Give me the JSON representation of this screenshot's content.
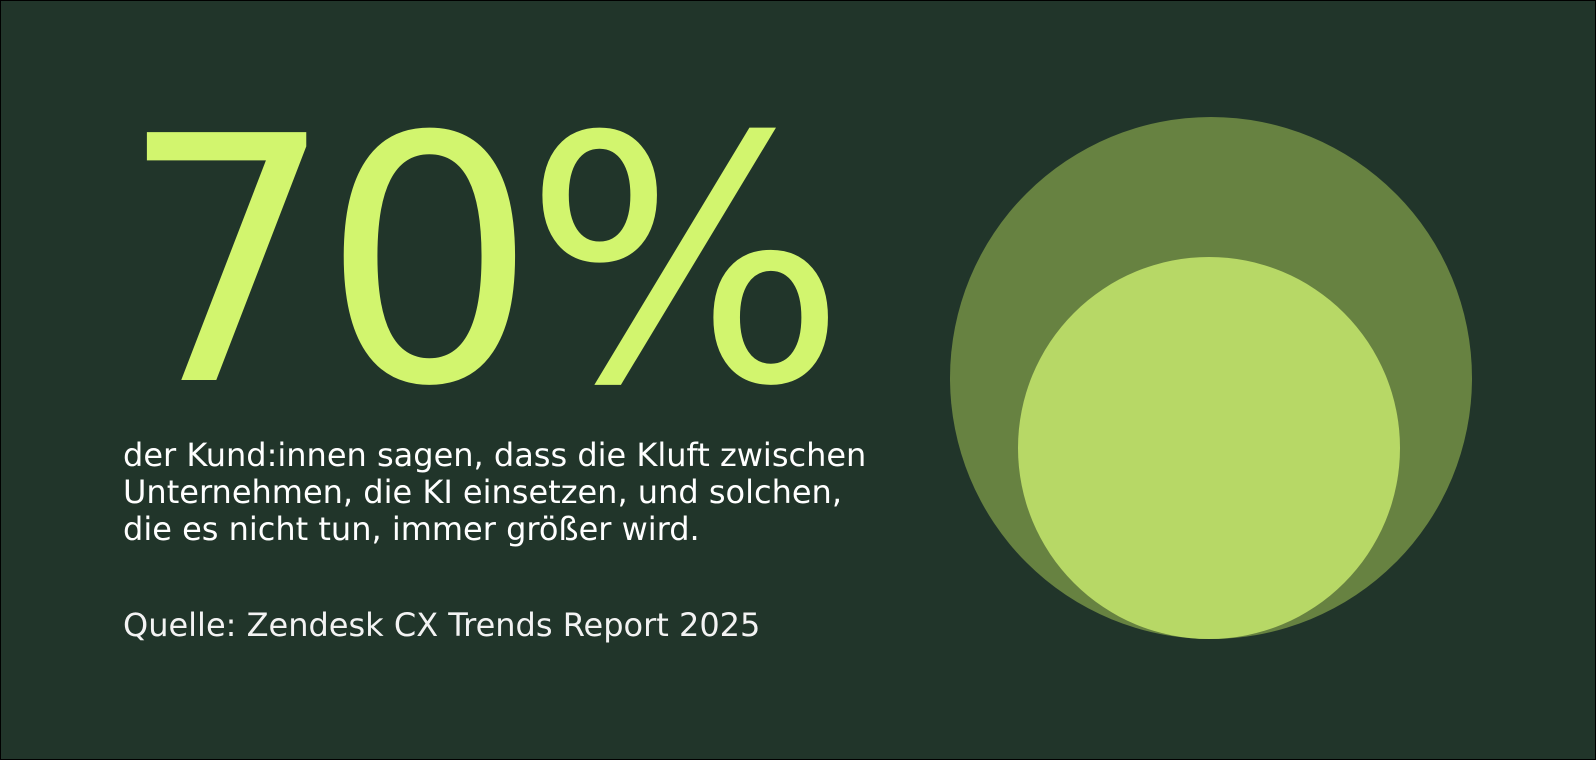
{
  "stat": {
    "value": "70%"
  },
  "description": "der Kund:innen sagen, dass die Kluft zwischen\nUnternehmen, die KI einsetzen, und solchen,\ndie es nicht tun, immer größer wird.",
  "source": "Quelle: Zendesk CX Trends Report 2025",
  "colors": {
    "background": "#21352a",
    "accent": "#d2f56e",
    "outer_circle": "#678241",
    "inner_circle": "#b7d866",
    "text": "#ffffff"
  }
}
